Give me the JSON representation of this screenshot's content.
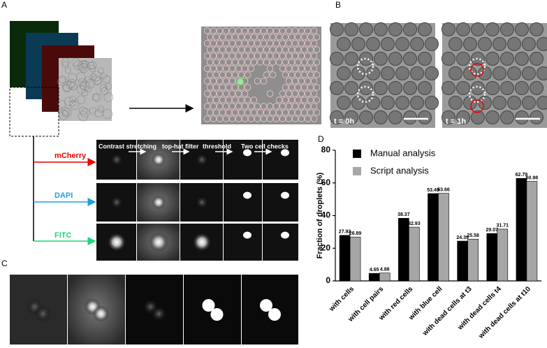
{
  "panels": {
    "a": "A",
    "b": "B",
    "c": "C",
    "d": "D"
  },
  "channels": [
    "mCherry",
    "DAPI",
    "FITC"
  ],
  "steps": [
    "Contrast stretching",
    "top-hat filter",
    "threshold",
    "Two cell checks"
  ],
  "times": [
    "t = 0h",
    "t = 1h"
  ],
  "chart_data": {
    "type": "bar",
    "y_label": "Fraction of droplets (%)",
    "categories": [
      "with cells",
      "with cell pairs",
      "with red cells",
      "with blue cell",
      "with dead cells at t3",
      "with dead cells t4",
      "with dead cells at t10"
    ],
    "series": [
      {
        "name": "Manual analysis",
        "color": "#000000",
        "values": [
          27.92,
          4.65,
          38.37,
          53.49,
          24.39,
          29.07,
          62.79
        ]
      },
      {
        "name": "Script analysis",
        "color": "#a6a6a6",
        "values": [
          26.89,
          4.88,
          32.93,
          53.66,
          25.58,
          31.71,
          60.98
        ]
      }
    ],
    "ylim": [
      0,
      80
    ],
    "yticks": [
      0,
      20,
      40,
      60,
      80
    ]
  }
}
